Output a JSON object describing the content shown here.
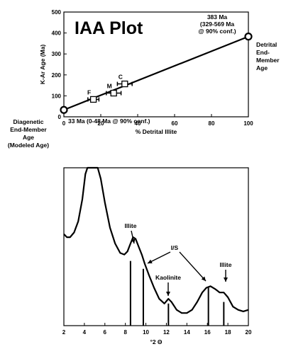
{
  "chart_data": [
    {
      "type": "scatter",
      "title": "IAA Plot",
      "xlabel": "% Detrital Illite",
      "ylabel": "K-Ar Age (Ma)",
      "xlim": [
        0,
        100
      ],
      "ylim": [
        0,
        500
      ],
      "xticks": [
        "0",
        "20",
        "40",
        "60",
        "80",
        "100"
      ],
      "yticks": [
        "0",
        "100",
        "200",
        "300",
        "400",
        "500"
      ],
      "grid": false,
      "points": [
        {
          "label": "F",
          "x": 16,
          "y": 83,
          "xerr": 3
        },
        {
          "label": "M",
          "x": 27,
          "y": 113,
          "xerr": 4
        },
        {
          "label": "C",
          "x": 33,
          "y": 157,
          "xerr": 4
        }
      ],
      "fit_line": {
        "x": [
          0,
          100
        ],
        "y": [
          33,
          383
        ]
      },
      "endpoints": [
        {
          "x": 0,
          "y": 33,
          "name": "Diagenetic End-Member Age (Modeled Age)"
        },
        {
          "x": 100,
          "y": 383,
          "name": "Detrital End-Member Age"
        }
      ],
      "annotations": {
        "upper_age_lines": [
          "383 Ma",
          "(329-569 Ma",
          "@ 90% conf.)"
        ],
        "lower_age": "33 Ma (0-48 Ma @ 90% conf.)",
        "diag_lines": [
          "Diagenetic",
          "End-Member",
          "Age",
          "(Modeled Age)"
        ],
        "detr_lines": [
          "Detrital",
          "End-",
          "Member",
          "Age"
        ]
      }
    },
    {
      "type": "line",
      "title": "",
      "xlabel": "°2 Θ",
      "ylabel": "",
      "xlim": [
        2,
        20
      ],
      "xticks": [
        "2",
        "4",
        "6",
        "8",
        "10",
        "12",
        "14",
        "16",
        "18",
        "20"
      ],
      "grid": false,
      "trace": [
        [
          2.0,
          0.58
        ],
        [
          2.3,
          0.56
        ],
        [
          2.6,
          0.56
        ],
        [
          3.0,
          0.59
        ],
        [
          3.4,
          0.66
        ],
        [
          3.8,
          0.8
        ],
        [
          4.1,
          0.96
        ],
        [
          4.3,
          1.0
        ],
        [
          5.3,
          1.0
        ],
        [
          5.6,
          0.93
        ],
        [
          6.0,
          0.78
        ],
        [
          6.5,
          0.62
        ],
        [
          7.0,
          0.52
        ],
        [
          7.5,
          0.46
        ],
        [
          7.9,
          0.45
        ],
        [
          8.2,
          0.47
        ],
        [
          8.5,
          0.52
        ],
        [
          8.75,
          0.56
        ],
        [
          9.0,
          0.55
        ],
        [
          9.3,
          0.5
        ],
        [
          9.6,
          0.45
        ],
        [
          9.9,
          0.39
        ],
        [
          10.3,
          0.32
        ],
        [
          10.8,
          0.24
        ],
        [
          11.3,
          0.17
        ],
        [
          11.8,
          0.14
        ],
        [
          12.2,
          0.17
        ],
        [
          12.5,
          0.15
        ],
        [
          13.0,
          0.1
        ],
        [
          13.5,
          0.08
        ],
        [
          14.0,
          0.08
        ],
        [
          14.5,
          0.1
        ],
        [
          15.0,
          0.15
        ],
        [
          15.5,
          0.21
        ],
        [
          15.9,
          0.24
        ],
        [
          16.3,
          0.25
        ],
        [
          16.8,
          0.23
        ],
        [
          17.2,
          0.21
        ],
        [
          17.6,
          0.21
        ],
        [
          18.0,
          0.18
        ],
        [
          18.5,
          0.12
        ],
        [
          19.0,
          0.1
        ],
        [
          19.5,
          0.09
        ],
        [
          20.0,
          0.1
        ]
      ],
      "reference_lines": [
        {
          "x": 8.5,
          "height": 0.41
        },
        {
          "x": 9.75,
          "height": 0.36
        },
        {
          "x": 12.2,
          "height": 0.14
        },
        {
          "x": 16.1,
          "height": 0.24
        },
        {
          "x": 17.6,
          "height": 0.15
        }
      ],
      "peak_labels": [
        {
          "text": "Illite",
          "x": 8.4
        },
        {
          "text": "I/S",
          "x": 12.0
        },
        {
          "text": "Kaolinite",
          "x": 12.2
        },
        {
          "text": "Illite",
          "x": 17.9
        }
      ]
    }
  ]
}
